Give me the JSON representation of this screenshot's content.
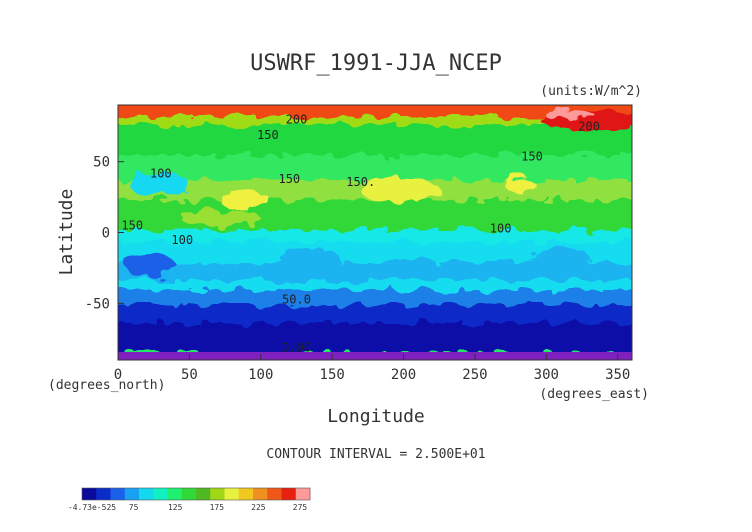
{
  "chart_data": {
    "type": "heatmap",
    "title": "USWRF_1991-JJA_NCEP",
    "units": "(units:W/m^2)",
    "xlabel": "Longitude",
    "ylabel": "Latitude",
    "x_unit_label": "(degrees_east)",
    "y_unit_label": "(degrees_north)",
    "xlim": [
      0,
      360
    ],
    "ylim": [
      -90,
      90
    ],
    "x_ticks": [
      "0",
      "50",
      "100",
      "150",
      "200",
      "250",
      "300",
      "350"
    ],
    "x_tick_values": [
      0,
      50,
      100,
      150,
      200,
      250,
      300,
      350
    ],
    "y_ticks": [
      "50",
      "0",
      "-50"
    ],
    "y_tick_values": [
      50,
      0,
      -50
    ],
    "contour_interval_text": "CONTOUR INTERVAL = 2.500E+01",
    "contour_interval": 25,
    "contour_labels": [
      {
        "text": "200",
        "lon": 125,
        "lat": 77
      },
      {
        "text": "150",
        "lon": 105,
        "lat": 66
      },
      {
        "text": "100",
        "lon": 30,
        "lat": 39
      },
      {
        "text": "150",
        "lon": 120,
        "lat": 35
      },
      {
        "text": "150.",
        "lon": 170,
        "lat": 33
      },
      {
        "text": "150",
        "lon": 290,
        "lat": 51
      },
      {
        "text": "200",
        "lon": 330,
        "lat": 72
      },
      {
        "text": "150",
        "lon": 10,
        "lat": 2
      },
      {
        "text": "100",
        "lon": 45,
        "lat": -8
      },
      {
        "text": "100",
        "lon": 268,
        "lat": 0
      },
      {
        "text": "50.0",
        "lon": 125,
        "lat": -50
      },
      {
        "text": "0.00",
        "lon": 125,
        "lat": -84
      }
    ],
    "colorbar": {
      "tick_labels": [
        "-4.73e-525",
        "75",
        "125",
        "175",
        "225",
        "275"
      ],
      "colors": [
        "#0a0a9a",
        "#0a2cc8",
        "#1a60e8",
        "#1aa0f0",
        "#14d8f0",
        "#10f0c0",
        "#20f070",
        "#30d838",
        "#50b820",
        "#a0d818",
        "#e8f040",
        "#f0c820",
        "#f09020",
        "#f05818",
        "#e82010",
        "#ff9a9a"
      ]
    },
    "grid": false,
    "legend": "bottom-left colorbar"
  }
}
